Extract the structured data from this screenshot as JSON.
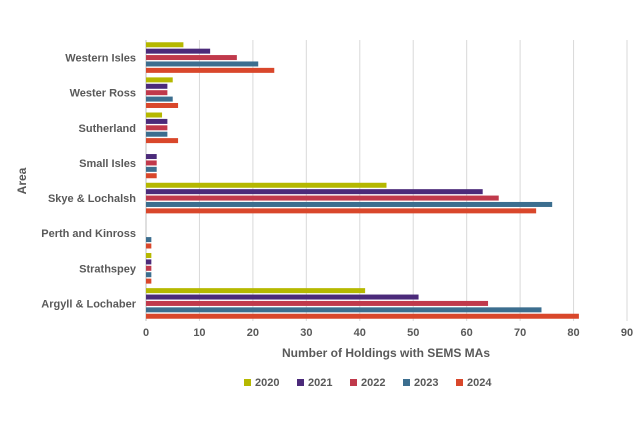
{
  "chart_data": {
    "type": "bar",
    "orientation": "horizontal",
    "title": "",
    "xlabel": "Number of Holdings with SEMS MAs",
    "ylabel": "Area",
    "xlim": [
      0,
      90
    ],
    "xticks": [
      0,
      10,
      20,
      30,
      40,
      50,
      60,
      70,
      80,
      90
    ],
    "grid": "vertical",
    "legend_position": "bottom",
    "categories": [
      "Western Isles",
      "Wester Ross",
      "Sutherland",
      "Small Isles",
      "Skye & Lochalsh",
      "Perth and Kinross",
      "Strathspey",
      "Argyll & Lochaber"
    ],
    "series": [
      {
        "name": "2020",
        "color": "#b5b800",
        "values": [
          7,
          5,
          3,
          0,
          45,
          0,
          1,
          41
        ]
      },
      {
        "name": "2021",
        "color": "#4b2a7a",
        "values": [
          12,
          4,
          4,
          2,
          63,
          0,
          1,
          51
        ]
      },
      {
        "name": "2022",
        "color": "#c0394b",
        "values": [
          17,
          4,
          4,
          2,
          66,
          0,
          1,
          64
        ]
      },
      {
        "name": "2023",
        "color": "#3c6e8f",
        "values": [
          21,
          5,
          4,
          2,
          76,
          1,
          1,
          74
        ]
      },
      {
        "name": "2024",
        "color": "#d9472b",
        "values": [
          24,
          6,
          6,
          2,
          73,
          1,
          1,
          81
        ]
      }
    ]
  }
}
